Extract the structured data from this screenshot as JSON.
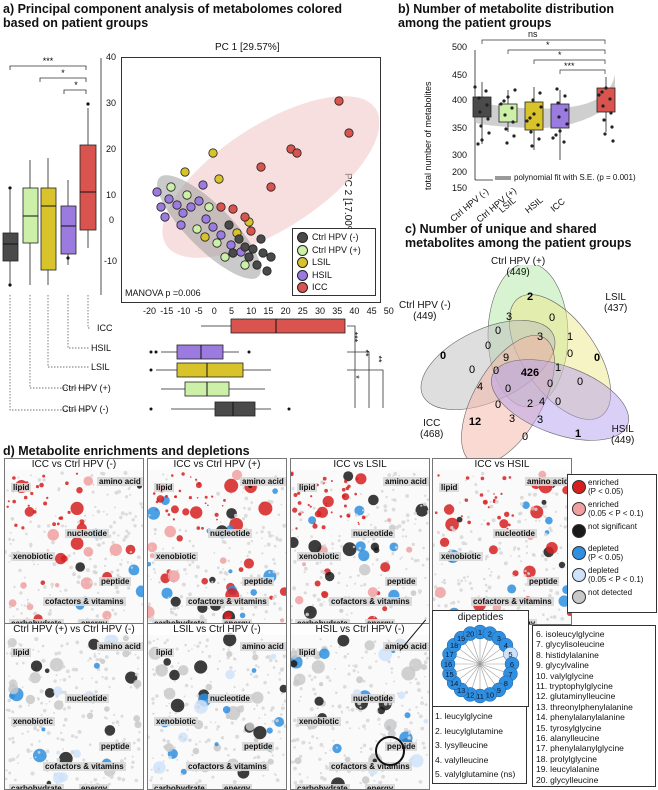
{
  "panel_a": {
    "title_line1": "a) Principal component analysis of metabolomes colored",
    "title_line2": "based on patient groups",
    "pc1_label": "PC 1 [29.57%]",
    "pc2_label": "PC 2 [17.00%]",
    "manova": "MANOVA p =0.006",
    "sig_labels": [
      "***",
      "*",
      "*"
    ],
    "sig_labels_horizontal": [
      "***",
      "**",
      "**",
      "*"
    ],
    "y_ticks": [
      "40",
      "30",
      "20",
      "10",
      "0",
      "-10"
    ],
    "x_ticks": [
      "-20",
      "-15",
      "-10",
      "-5",
      "0",
      "5",
      "10",
      "15",
      "20",
      "25",
      "30",
      "35",
      "40",
      "45",
      "50"
    ],
    "legend": [
      {
        "label": "Ctrl HPV (-)",
        "color": "#4a4a4a"
      },
      {
        "label": "Ctrl HPV (+)",
        "color": "#ccf0a8"
      },
      {
        "label": "LSIL",
        "color": "#d9c32a"
      },
      {
        "label": "HSIL",
        "color": "#9b7be0"
      },
      {
        "label": "ICC",
        "color": "#d9534f"
      }
    ],
    "group_labels": [
      "ICC",
      "HSIL",
      "LSIL",
      "Ctrl HPV (+)",
      "Ctrl HPV (-)"
    ]
  },
  "panel_b": {
    "title_line1": "b) Number of metabolite distribution",
    "title_line2": "among the patient groups",
    "ylabel": "total number of metabolites",
    "y_ticks": [
      "500",
      "450",
      "400",
      "350",
      "300",
      "200",
      "150"
    ],
    "x_labels": [
      "Ctrl HPV (-)",
      "Ctrl HPV (+)",
      "LSIL",
      "HSIL",
      "ICC"
    ],
    "sig": [
      "ns",
      "*",
      "*",
      "***"
    ],
    "fit_label": "polynomial fit with S.E. (p = 0.001)"
  },
  "panel_c": {
    "title_line1": "c) Number of unique and shared",
    "title_line2": "metabolites among the patient groups",
    "sets": [
      {
        "name": "Ctrl HPV (+)",
        "count": "(449)"
      },
      {
        "name": "LSIL",
        "count": "(437)"
      },
      {
        "name": "Ctrl HPV (-)",
        "count": "(449)"
      },
      {
        "name": "ICC",
        "count": "(468)"
      },
      {
        "name": "HSIL",
        "count": "(449)"
      }
    ],
    "numbers": [
      "2",
      "0",
      "0",
      "12",
      "1",
      "426",
      "3",
      "0",
      "0",
      "3",
      "1",
      "0",
      "9",
      "0",
      "0",
      "1",
      "0",
      "4",
      "0",
      "0",
      "4",
      "2",
      "3",
      "3",
      "0",
      "0",
      "0",
      "0"
    ]
  },
  "panel_d": {
    "title": "d) Metabolite enrichments and depletions",
    "networks": [
      {
        "title": "ICC vs Ctrl HPV (-)"
      },
      {
        "title": "ICC vs Ctrl HPV (+)"
      },
      {
        "title": "ICC vs LSIL"
      },
      {
        "title": "ICC vs HSIL"
      },
      {
        "title": "Ctrl HPV (+) vs Ctrl HPV (-)"
      },
      {
        "title": "LSIL vs Ctrl HPV (-)"
      },
      {
        "title": "HSIL  vs Ctrl HPV (-)"
      }
    ],
    "categories": [
      "lipid",
      "amino acid",
      "nucleotide",
      "xenobiotic",
      "peptide",
      "cofactors & vitamins",
      "carbohydrate",
      "energy"
    ],
    "legend": [
      {
        "label1": "enriched",
        "label2": "(P < 0.05)",
        "color": "#d62020"
      },
      {
        "label1": "enriched",
        "label2": "(0.05 < P < 0.1)",
        "color": "#f0a0a0"
      },
      {
        "label1": "not significant",
        "label2": "",
        "color": "#1a1a1a"
      },
      {
        "label1": "depleted",
        "label2": "(P < 0.05)",
        "color": "#2f8fe0"
      },
      {
        "label1": "depleted",
        "label2": "(0.05 < P < 0.1)",
        "color": "#cfe2fa"
      },
      {
        "label1": "not detected",
        "label2": "",
        "color": "#c8c8c8"
      }
    ],
    "dipeptides_title": "dipeptides",
    "dipeptide_nodes": [
      "1",
      "2",
      "3",
      "4",
      "5",
      "6",
      "7",
      "8",
      "9",
      "10",
      "11",
      "12",
      "13",
      "14",
      "15",
      "16",
      "17",
      "18",
      "19",
      "20"
    ],
    "list_a": [
      "1. leucylglycine",
      "2. leucylglutamine",
      "3. lysylleucine",
      "4. valylleucine",
      "5. valylglutamine (ns)"
    ],
    "list_b": [
      "6. isoleucylglycine",
      "7. glycylisoleucine",
      "8. histidylalanine",
      "9. glycylvaline",
      "10. valylglycine",
      "11. tryptophylglycine",
      "12. glutaminylleucine",
      "13. threonylphenylalanine",
      "14. phenylalanylalanine",
      "15. tyrosylglycine",
      "16. alanylleucine",
      "17. phenylalanylglycine",
      "18. prolylglycine",
      "19. leucylalanine",
      "20. glycylleucine"
    ]
  }
}
